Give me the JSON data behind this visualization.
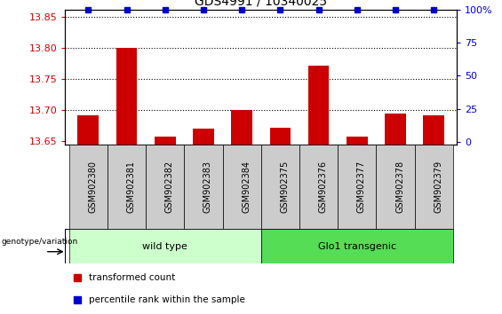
{
  "title": "GDS4991 / 10340025",
  "samples": [
    "GSM902380",
    "GSM902381",
    "GSM902382",
    "GSM902383",
    "GSM902384",
    "GSM902375",
    "GSM902376",
    "GSM902377",
    "GSM902378",
    "GSM902379"
  ],
  "red_values": [
    13.692,
    13.8,
    13.657,
    13.67,
    13.7,
    13.672,
    13.772,
    13.657,
    13.695,
    13.692
  ],
  "blue_values": [
    100,
    100,
    100,
    100,
    100,
    100,
    100,
    100,
    100,
    100
  ],
  "ylim_left": [
    13.645,
    13.862
  ],
  "ylim_right": [
    -1.8,
    100
  ],
  "yticks_left": [
    13.65,
    13.7,
    13.75,
    13.8,
    13.85
  ],
  "yticks_right": [
    0,
    25,
    50,
    75,
    100
  ],
  "ytick_labels_right": [
    "0",
    "25",
    "50",
    "75",
    "100%"
  ],
  "groups": [
    {
      "label": "wild type",
      "start": 0,
      "end": 4,
      "color": "#ccffcc"
    },
    {
      "label": "Glo1 transgenic",
      "start": 5,
      "end": 9,
      "color": "#55dd55"
    }
  ],
  "bar_color": "#cc0000",
  "marker_color": "#0000cc",
  "bar_bottom": 13.645,
  "legend_items": [
    {
      "color": "#cc0000",
      "label": "transformed count"
    },
    {
      "color": "#0000cc",
      "label": "percentile rank within the sample"
    }
  ],
  "grid_yticks": [
    13.7,
    13.75,
    13.8
  ],
  "tick_label_color_left": "#cc0000",
  "tick_label_color_right": "#0000cc",
  "xtick_bg_color": "#cccccc",
  "fig_width": 5.65,
  "fig_height": 3.54,
  "dpi": 100
}
